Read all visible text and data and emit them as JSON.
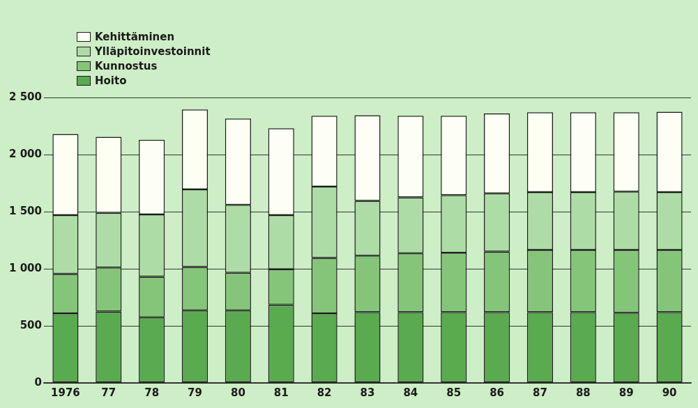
{
  "chart_data": {
    "type": "bar",
    "stacked": true,
    "categories": [
      "1976",
      "77",
      "78",
      "79",
      "80",
      "81",
      "82",
      "83",
      "84",
      "85",
      "86",
      "87",
      "88",
      "89",
      "90"
    ],
    "series": [
      {
        "name": "Hoito",
        "color": "#5aaa50",
        "values": [
          610,
          625,
          575,
          635,
          635,
          685,
          610,
          620,
          620,
          620,
          620,
          620,
          620,
          615,
          620
        ]
      },
      {
        "name": "Kunnostus",
        "color": "#85c57a",
        "values": [
          345,
          385,
          355,
          380,
          330,
          310,
          485,
          495,
          515,
          520,
          530,
          545,
          545,
          550,
          545
        ]
      },
      {
        "name": "Ylläpitoinvestoinnit",
        "color": "#aedca6",
        "values": [
          515,
          480,
          545,
          680,
          595,
          475,
          625,
          480,
          490,
          505,
          510,
          505,
          505,
          510,
          505
        ]
      },
      {
        "name": "Kehittäminen",
        "color": "#fdfff5",
        "values": [
          710,
          665,
          655,
          700,
          755,
          760,
          620,
          750,
          715,
          695,
          700,
          700,
          700,
          695,
          705
        ]
      }
    ],
    "ylim": [
      0,
      2500
    ],
    "yticks": [
      {
        "value": 0,
        "label": "0"
      },
      {
        "value": 500,
        "label": "500"
      },
      {
        "value": 1000,
        "label": "1 000"
      },
      {
        "value": 1500,
        "label": "1 500"
      },
      {
        "value": 2000,
        "label": "2 000"
      },
      {
        "value": 2500,
        "label": "2 500"
      }
    ],
    "grid": "y",
    "legend": "top left"
  }
}
